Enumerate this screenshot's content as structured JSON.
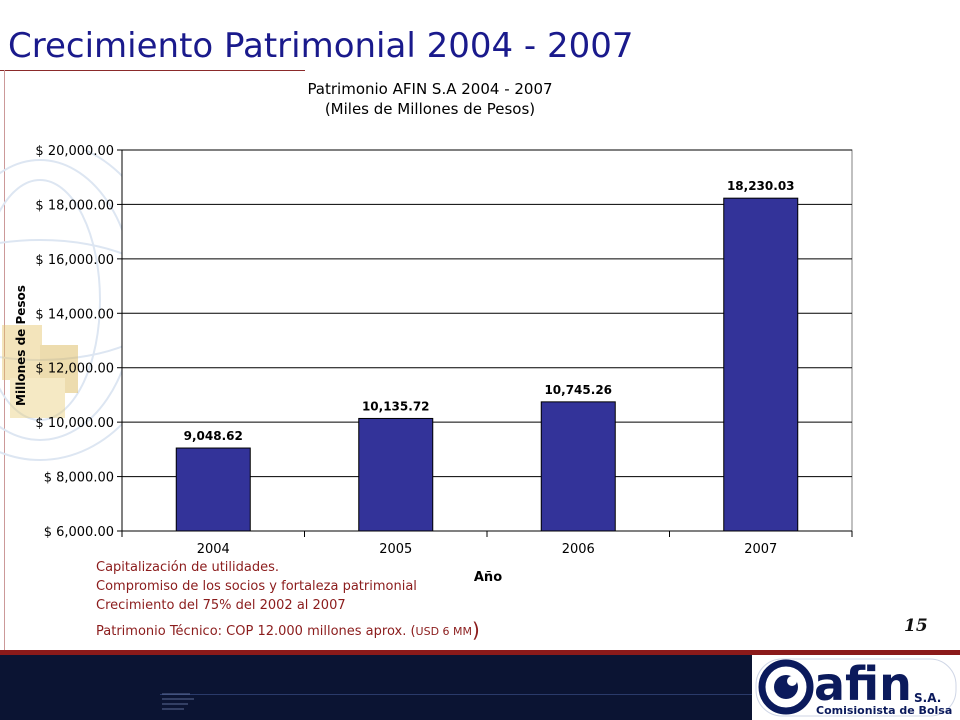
{
  "slide": {
    "title": "Crecimiento Patrimonial 2004 - 2007",
    "page_number": "15"
  },
  "notes": {
    "line1": "Capitalización de utilidades.",
    "line2": "Compromiso de los socios y fortaleza patrimonial",
    "line3": "Crecimiento del 75% del 2002 al 2007",
    "line4_main": "Patrimonio Técnico: COP 12.000 millones aprox. (",
    "line4_small": "USD 6 MM",
    "line4_close": ")"
  },
  "logo": {
    "brand": "afin",
    "suffix": "S.A.",
    "tagline": "Comisionista de Bolsa"
  },
  "colors": {
    "title": "#1a1a8c",
    "bar": "#333399",
    "notes": "#8b1c1c",
    "footer": "#0b1433",
    "accent_red": "#8b1a1a"
  },
  "chart_data": {
    "type": "bar",
    "title": "Patrimonio AFIN S.A 2004 - 2007",
    "subtitle": "(Miles de Millones de Pesos)",
    "xlabel": "Año",
    "ylabel": "Millones de Pesos",
    "categories": [
      "2004",
      "2005",
      "2006",
      "2007"
    ],
    "values": [
      9048.62,
      10135.72,
      10745.26,
      18230.03
    ],
    "data_labels": [
      "9,048.62",
      "10,135.72",
      "10,745.26",
      "18,230.03"
    ],
    "ylim": [
      6000,
      20000
    ],
    "yticks": [
      6000,
      8000,
      10000,
      12000,
      14000,
      16000,
      18000,
      20000
    ],
    "ytick_labels": [
      "$ 6,000.00",
      "$ 8,000.00",
      "$ 10,000.00",
      "$ 12,000.00",
      "$ 14,000.00",
      "$ 16,000.00",
      "$ 18,000.00",
      "$ 20,000.00"
    ],
    "grid": true,
    "legend": "none"
  }
}
